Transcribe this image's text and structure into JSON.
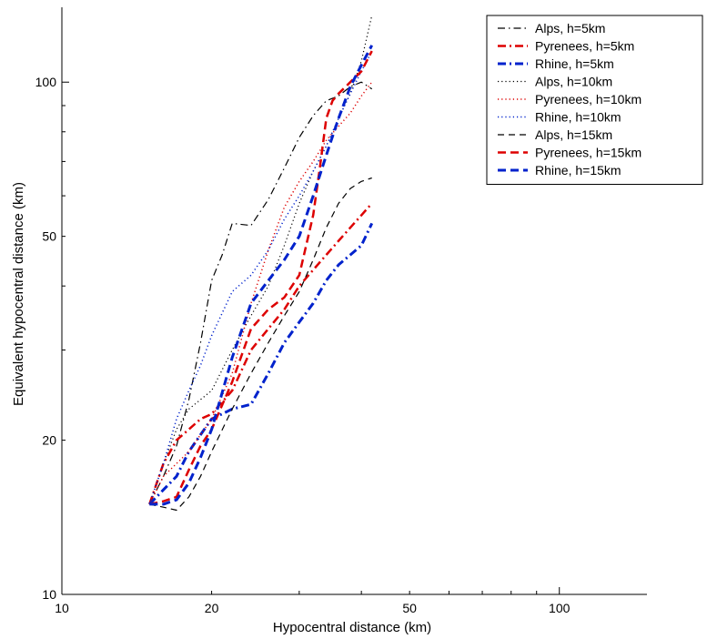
{
  "chart_data": {
    "type": "line",
    "title": "",
    "xlabel": "Hypocentral distance (km)",
    "ylabel": "Equivalent hypocentral distance (km)",
    "x_scale": "log",
    "y_scale": "log",
    "xlim": [
      10,
      150
    ],
    "ylim": [
      10,
      140
    ],
    "x_ticks": [
      10,
      20,
      50,
      100
    ],
    "y_ticks": [
      10,
      20,
      50,
      100
    ],
    "grid": false,
    "legend_position": "top-right",
    "series": [
      {
        "name": "Alps, h=5km",
        "color": "#000000",
        "style": "dashdot",
        "width": 1.2,
        "x": [
          15,
          16,
          17,
          18,
          19,
          20,
          21,
          22,
          24,
          26,
          28,
          30,
          32,
          34,
          36,
          38,
          40,
          42
        ],
        "y": [
          15,
          17,
          19.5,
          24,
          31,
          41,
          46,
          53,
          52.5,
          59,
          68,
          78,
          86,
          92,
          94,
          98,
          100,
          97
        ]
      },
      {
        "name": "Pyrenees, h=5km",
        "color": "#dd0000",
        "style": "dashdot",
        "width": 2.5,
        "x": [
          15,
          16,
          17,
          18,
          19,
          20,
          22,
          24,
          26,
          28,
          30,
          32,
          34,
          36,
          38,
          40,
          42
        ],
        "y": [
          15,
          18,
          20,
          21,
          22,
          22.5,
          25,
          30,
          33,
          36,
          40,
          43,
          46,
          49,
          52,
          55,
          58
        ]
      },
      {
        "name": "Rhine, h=5km",
        "color": "#0022cc",
        "style": "dashdot",
        "width": 3,
        "x": [
          15,
          16,
          17,
          18,
          19,
          20,
          22,
          24,
          26,
          28,
          30,
          32,
          34,
          36,
          38,
          40,
          42
        ],
        "y": [
          15,
          16,
          17,
          19,
          20.5,
          22,
          23,
          23.5,
          27,
          31,
          34,
          37,
          41,
          44,
          46,
          48,
          53
        ]
      },
      {
        "name": "Alps, h=10km",
        "color": "#000000",
        "style": "dotted",
        "width": 1.2,
        "x": [
          15,
          16,
          17,
          18,
          19,
          20,
          22,
          24,
          26,
          28,
          30,
          32,
          34,
          36,
          38,
          40,
          42
        ],
        "y": [
          15,
          18,
          21,
          23,
          24,
          25,
          30,
          35,
          40,
          48,
          58,
          67,
          75,
          85,
          95,
          110,
          135
        ]
      },
      {
        "name": "Pyrenees, h=10km",
        "color": "#dd0000",
        "style": "dotted",
        "width": 1.5,
        "x": [
          15,
          16,
          17,
          18,
          19,
          20,
          22,
          24,
          26,
          28,
          30,
          32,
          34,
          36,
          38,
          40,
          42
        ],
        "y": [
          15,
          17,
          18,
          19,
          20.5,
          22,
          27,
          37,
          47,
          57,
          64,
          70,
          77,
          82,
          87,
          94,
          100
        ]
      },
      {
        "name": "Rhine, h=10km",
        "color": "#0022cc",
        "style": "dotted",
        "width": 1.5,
        "x": [
          15,
          16,
          17,
          18,
          19,
          20,
          22,
          24,
          26,
          28,
          30,
          32,
          34,
          36,
          38,
          40,
          42
        ],
        "y": [
          15,
          18,
          22,
          25,
          28,
          32,
          39,
          42,
          47,
          54,
          60,
          67,
          75,
          85,
          95,
          105,
          115
        ]
      },
      {
        "name": "Alps, h=15km",
        "color": "#000000",
        "style": "dashed",
        "width": 1.2,
        "x": [
          15,
          16,
          17,
          18,
          19,
          20,
          22,
          24,
          26,
          28,
          30,
          32,
          34,
          36,
          38,
          40,
          42
        ],
        "y": [
          15,
          14.8,
          14.6,
          15.5,
          17,
          19,
          23,
          27,
          31,
          35,
          39,
          45,
          52,
          58,
          62,
          64,
          65
        ]
      },
      {
        "name": "Pyrenees, h=15km",
        "color": "#dd0000",
        "style": "dashed",
        "width": 2.5,
        "x": [
          15,
          16,
          17,
          18,
          19,
          20,
          22,
          24,
          26,
          28,
          30,
          32,
          33,
          34,
          35,
          36,
          38,
          40,
          42
        ],
        "y": [
          15,
          15.2,
          15.5,
          17.5,
          19.5,
          21,
          26,
          33,
          36,
          38,
          42,
          55,
          68,
          85,
          92,
          95,
          100,
          105,
          115
        ]
      },
      {
        "name": "Rhine, h=15km",
        "color": "#0022cc",
        "style": "dashed",
        "width": 3,
        "x": [
          15,
          16,
          17,
          18,
          19,
          20,
          22,
          24,
          26,
          28,
          30,
          32,
          34,
          36,
          38,
          40,
          42
        ],
        "y": [
          15,
          15,
          15.3,
          16.5,
          18.5,
          21,
          29,
          37,
          41,
          45,
          50,
          60,
          72,
          85,
          98,
          108,
          118
        ]
      }
    ]
  }
}
